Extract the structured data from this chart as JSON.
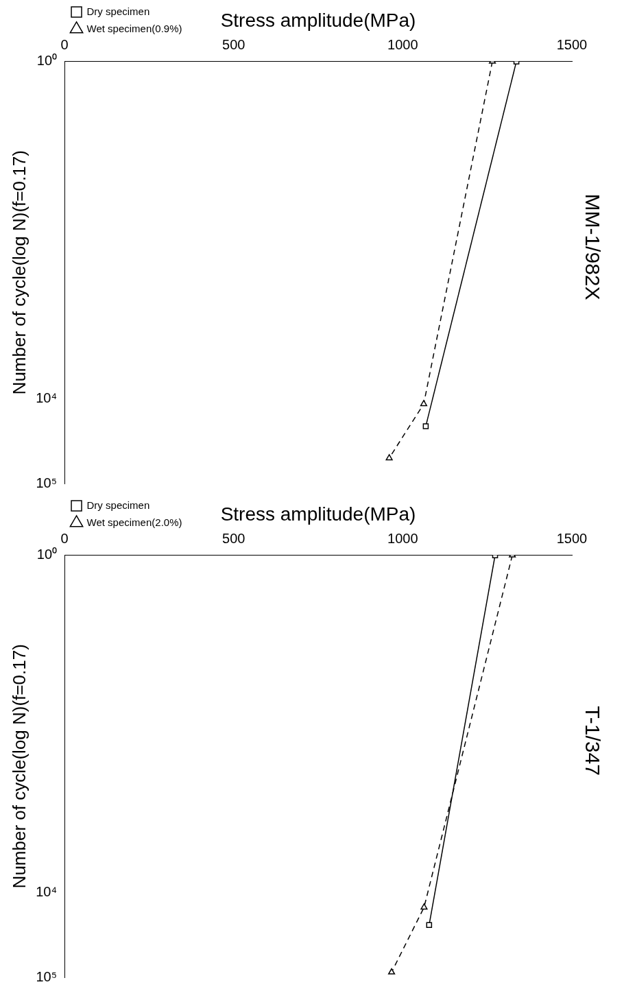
{
  "chart_data": [
    {
      "type": "line",
      "title": "MM-1/982X",
      "xlabel": "Stress amplitude(MPa)",
      "ylabel": "Number of cycle(log N)(f=0.17)",
      "xlim": [
        0,
        1500
      ],
      "xticks": [
        0,
        500,
        1000,
        1500
      ],
      "ylim": [
        100000,
        1
      ],
      "yticks": [
        {
          "value": 1,
          "label": "10⁰"
        },
        {
          "value": 10000,
          "label": "10⁴"
        },
        {
          "value": 100000,
          "label": "10⁵"
        }
      ],
      "log": "y",
      "grid": false,
      "legend": "left",
      "series": [
        {
          "name": "Dry specimen",
          "color": "#000000",
          "marker": "square",
          "line_style": "solid",
          "x": [
            1336,
            1068
          ],
          "values": [
            1,
            21000
          ]
        },
        {
          "name": "Wet specimen(0.9%)",
          "color": "#000000",
          "marker": "triangle",
          "line_style": "dashed",
          "x": [
            1265,
            1062,
            960
          ],
          "values": [
            1,
            11400,
            50000
          ]
        }
      ]
    },
    {
      "type": "line",
      "title": "T-1/347",
      "xlabel": "Stress amplitude(MPa)",
      "ylabel": "Number of cycle(log N)(f=0.17)",
      "xlim": [
        0,
        1500
      ],
      "xticks": [
        0,
        500,
        1000,
        1500
      ],
      "ylim": [
        100000,
        1
      ],
      "yticks": [
        {
          "value": 1,
          "label": "10⁰"
        },
        {
          "value": 10000,
          "label": "10⁴"
        },
        {
          "value": 100000,
          "label": "10⁵"
        }
      ],
      "log": "y",
      "grid": false,
      "legend": "left",
      "series": [
        {
          "name": "Dry specimen",
          "color": "#000000",
          "marker": "square",
          "line_style": "solid",
          "x": [
            1273,
            1078
          ],
          "values": [
            1,
            24000
          ]
        },
        {
          "name": "Wet specimen(2.0%)",
          "color": "#000000",
          "marker": "triangle",
          "line_style": "dashed",
          "x": [
            1324,
            1063,
            967
          ],
          "values": [
            1,
            14800,
            87000
          ]
        }
      ]
    }
  ]
}
